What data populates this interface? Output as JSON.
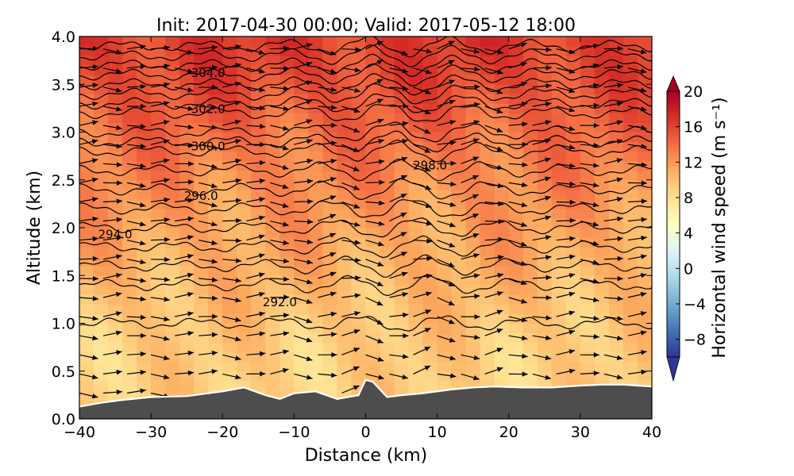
{
  "chart_data": [
    {
      "type": "heatmap",
      "title": "Init: 2017-04-30 00:00; Valid: 2017-05-12 18:00",
      "xlabel": "Distance (km)",
      "ylabel": "Altitude (km)",
      "xlim": [
        -40,
        40
      ],
      "ylim": [
        0.0,
        4.0
      ],
      "x_ticks": [
        "−40",
        "−30",
        "−20",
        "−10",
        "0",
        "10",
        "20",
        "30",
        "40"
      ],
      "y_ticks": [
        "0.0",
        "0.5",
        "1.0",
        "1.5",
        "2.0",
        "2.5",
        "3.0",
        "3.5",
        "4.0"
      ],
      "field_description": "filled contours of horizontal wind speed, arrows of wind direction, black potential-temperature contours, dark terrain below white surface line",
      "speed_profile": {
        "altitude_km": [
          0.3,
          0.7,
          1.0,
          1.3,
          1.6,
          2.0,
          2.4,
          2.8,
          3.2,
          3.6,
          4.0
        ],
        "wind_speed": [
          9.0,
          9.2,
          9.6,
          10.2,
          10.8,
          11.5,
          12.4,
          13.4,
          14.6,
          15.8,
          16.4
        ]
      },
      "terrain": {
        "x_km": [
          -40,
          -37,
          -34,
          -30,
          -25,
          -20,
          -17,
          -14,
          -12,
          -10,
          -7,
          -4,
          -1,
          0,
          1,
          3,
          5,
          8,
          12,
          15,
          18,
          22,
          26,
          30,
          33,
          36,
          38,
          40
        ],
        "altitude_km": [
          0.12,
          0.16,
          0.19,
          0.22,
          0.23,
          0.28,
          0.32,
          0.24,
          0.2,
          0.26,
          0.28,
          0.2,
          0.24,
          0.4,
          0.38,
          0.22,
          0.24,
          0.26,
          0.3,
          0.32,
          0.33,
          0.32,
          0.32,
          0.34,
          0.35,
          0.35,
          0.34,
          0.33
        ]
      },
      "potential_temperature_contours": [
        {
          "label": "292.0",
          "label_x_km": -12,
          "label_y_km": 1.22,
          "levels_km": [
            1.0,
            1.4
          ]
        },
        {
          "label": "294.0",
          "label_x_km": -35,
          "label_y_km": 1.93,
          "levels_km": [
            1.6,
            1.8,
            2.0
          ]
        },
        {
          "label": "296.0",
          "label_x_km": -23,
          "label_y_km": 2.33,
          "levels_km": [
            2.2,
            2.4
          ]
        },
        {
          "label": "298.0",
          "label_x_km": 9,
          "label_y_km": 2.65,
          "levels_km": [
            2.6,
            2.8
          ]
        },
        {
          "label": "300.0",
          "label_x_km": -22,
          "label_y_km": 2.85,
          "levels_km": [
            2.9,
            3.0
          ]
        },
        {
          "label": "302.0",
          "label_x_km": -22,
          "label_y_km": 3.24,
          "levels_km": [
            3.2,
            3.3,
            3.4
          ]
        },
        {
          "label": "304.0",
          "label_x_km": -22,
          "label_y_km": 3.62,
          "levels_km": [
            3.5,
            3.6,
            3.7,
            3.8,
            3.9
          ]
        }
      ],
      "colorbar": {
        "label": "Horizontal wind speed (m s⁻¹)",
        "range": [
          -10,
          20
        ],
        "ticks": [
          "20",
          "16",
          "12",
          "8",
          "4",
          "0",
          "−4",
          "−8"
        ],
        "extend": "both",
        "colormap": [
          "#313695",
          "#4575b4",
          "#74add1",
          "#abd9e9",
          "#e0f3f8",
          "#ffffbf",
          "#fee090",
          "#fdae61",
          "#f46d43",
          "#d73027",
          "#a50026"
        ]
      }
    }
  ]
}
